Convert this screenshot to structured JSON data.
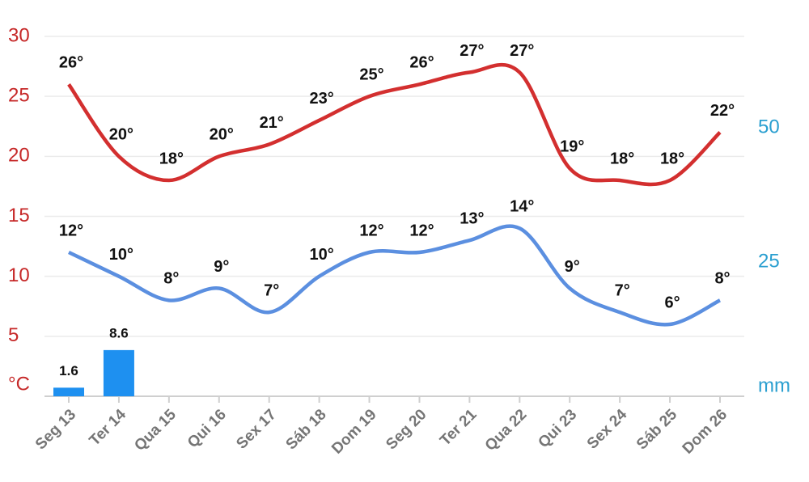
{
  "chart_data": {
    "type": "line",
    "categories": [
      "Seg 13",
      "Ter 14",
      "Qua 15",
      "Qui 16",
      "Sex 17",
      "Sáb 18",
      "Dom 19",
      "Seg 20",
      "Ter 21",
      "Qua 22",
      "Qui 23",
      "Sex 24",
      "Sáb 25",
      "Dom 26"
    ],
    "ylim": [
      0,
      30
    ],
    "yticks": [
      {
        "value": 0,
        "label": "°C"
      },
      5,
      10,
      15,
      20,
      25,
      30
    ],
    "y2lim": [
      0,
      67
    ],
    "y2ticks": [
      {
        "value": 0,
        "label": "mm"
      },
      25,
      50
    ],
    "grid": true,
    "series": [
      {
        "type": "line",
        "color": "#d32f2f",
        "values": [
          26,
          20,
          18,
          20,
          21,
          23,
          25,
          26,
          27,
          27,
          19,
          18,
          18,
          22
        ],
        "value_labels": [
          "26°",
          "20°",
          "18°",
          "20°",
          "21°",
          "23°",
          "25°",
          "26°",
          "27°",
          "27°",
          "19°",
          "18°",
          "18°",
          "22°"
        ]
      },
      {
        "type": "line",
        "color": "#5b8fe0",
        "values": [
          12,
          10,
          8,
          9,
          7,
          10,
          12,
          12,
          13,
          14,
          9,
          7,
          6,
          8
        ],
        "value_labels": [
          "12°",
          "10°",
          "8°",
          "9°",
          "7°",
          "10°",
          "12°",
          "12°",
          "13°",
          "14°",
          "9°",
          "7°",
          "6°",
          "8°"
        ]
      },
      {
        "type": "bar",
        "axis": "y2",
        "color": "#1e90f0",
        "values": [
          1.6,
          8.6,
          null,
          null,
          null,
          null,
          null,
          null,
          null,
          null,
          null,
          null,
          null,
          null
        ]
      }
    ]
  }
}
